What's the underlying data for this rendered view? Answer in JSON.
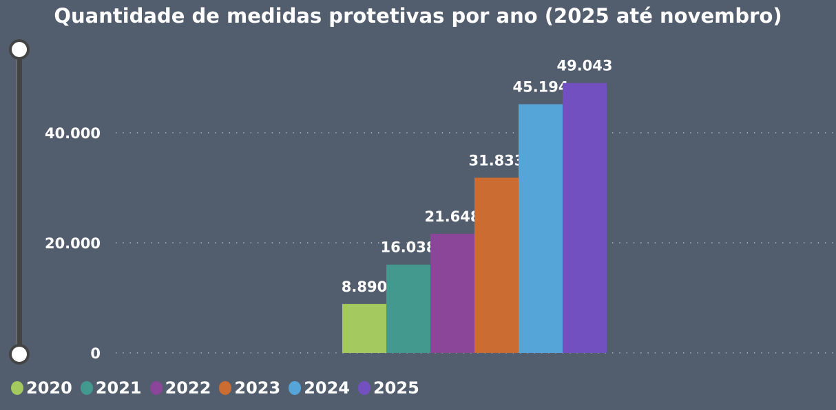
{
  "chart_data": {
    "type": "bar",
    "title": "Quantidade de medidas protetivas por ano (2025 até novembro)",
    "categories": [
      "2020",
      "2021",
      "2022",
      "2023",
      "2024",
      "2025"
    ],
    "values": [
      8890,
      16038,
      21648,
      31833,
      45194,
      49043
    ],
    "data_labels": [
      "8.890",
      "16.038",
      "21.648",
      "31.833",
      "45.194",
      "49.043"
    ],
    "colors": [
      "#A3C95F",
      "#44998F",
      "#8B4699",
      "#CB6D33",
      "#55A5D8",
      "#7350C0"
    ],
    "yticks": [
      0,
      20000,
      40000
    ],
    "ytick_labels": [
      "0",
      "20.000",
      "40.000"
    ],
    "ylim": [
      0,
      50000
    ],
    "grid": "horizontal dotted",
    "legend": [
      "2020",
      "2021",
      "2022",
      "2023",
      "2024",
      "2025"
    ],
    "legend_position": "bottom-left",
    "background": "#525D6D",
    "zoom_slider": "vertical, full range"
  }
}
